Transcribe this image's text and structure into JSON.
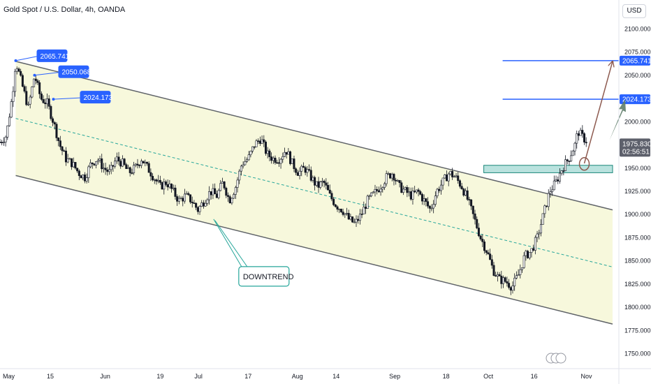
{
  "header": {
    "title": "Gold Spot / U.S. Dollar, 4h, OANDA",
    "currency": "USD"
  },
  "colors": {
    "channel_fill": "#f6f7d8",
    "channel_line": "#5f6368",
    "midline": "#26a69a",
    "candles": "#131722",
    "level_line": "#2962ff",
    "support_zone": "#b2dfdb",
    "arrow_brown": "#8d5a4f",
    "arrow_green": "#5f7d6a",
    "callout_bg": "#2962ff",
    "price_tag_bg": "#5d606b"
  },
  "chart_data": {
    "type": "candlestick",
    "symbol": "XAUUSD",
    "timeframe": "4h",
    "ylim": [
      1740,
      2110
    ],
    "yticks": [
      1750,
      1775,
      1800,
      1825,
      1850,
      1875,
      1900,
      1925,
      1950,
      1975,
      2000,
      2025,
      2050,
      2075,
      2100
    ],
    "ytick_labels": [
      "1750.000",
      "1775.000",
      "1800.000",
      "1825.000",
      "1850.000",
      "1875.000",
      "1900.000",
      "1925.000",
      "1950.000",
      "",
      "2000.000",
      "",
      "2050.000",
      "2075.000",
      "2100.000"
    ],
    "xticks": [
      {
        "label": "May",
        "day": 0
      },
      {
        "label": "15",
        "day": 14
      },
      {
        "label": "Jun",
        "day": 31
      },
      {
        "label": "19",
        "day": 49
      },
      {
        "label": "Jul",
        "day": 61
      },
      {
        "label": "17",
        "day": 77
      },
      {
        "label": "Aug",
        "day": 92
      },
      {
        "label": "14",
        "day": 105
      },
      {
        "label": "Sep",
        "day": 123
      },
      {
        "label": "18",
        "day": 140
      },
      {
        "label": "Oct",
        "day": 153
      },
      {
        "label": "16",
        "day": 168
      },
      {
        "label": "Nov",
        "day": 184
      }
    ],
    "xlim_days": [
      -2,
      195
    ],
    "price_path": [
      [
        -2,
        1978
      ],
      [
        0,
        1985
      ],
      [
        2,
        2030
      ],
      [
        3,
        2065
      ],
      [
        5,
        2040
      ],
      [
        7,
        2015
      ],
      [
        9,
        2050
      ],
      [
        11,
        2025
      ],
      [
        13,
        2020
      ],
      [
        15,
        2000
      ],
      [
        17,
        1975
      ],
      [
        19,
        1960
      ],
      [
        21,
        1955
      ],
      [
        23,
        1945
      ],
      [
        25,
        1940
      ],
      [
        27,
        1955
      ],
      [
        29,
        1960
      ],
      [
        31,
        1950
      ],
      [
        33,
        1945
      ],
      [
        35,
        1960
      ],
      [
        37,
        1955
      ],
      [
        39,
        1945
      ],
      [
        41,
        1950
      ],
      [
        43,
        1960
      ],
      [
        45,
        1950
      ],
      [
        47,
        1940
      ],
      [
        49,
        1930
      ],
      [
        51,
        1935
      ],
      [
        53,
        1925
      ],
      [
        55,
        1915
      ],
      [
        57,
        1920
      ],
      [
        59,
        1915
      ],
      [
        61,
        1905
      ],
      [
        63,
        1915
      ],
      [
        65,
        1925
      ],
      [
        67,
        1920
      ],
      [
        69,
        1935
      ],
      [
        71,
        1915
      ],
      [
        73,
        1930
      ],
      [
        75,
        1955
      ],
      [
        77,
        1960
      ],
      [
        79,
        1975
      ],
      [
        81,
        1982
      ],
      [
        83,
        1965
      ],
      [
        85,
        1960
      ],
      [
        87,
        1960
      ],
      [
        89,
        1970
      ],
      [
        91,
        1955
      ],
      [
        93,
        1945
      ],
      [
        95,
        1950
      ],
      [
        97,
        1940
      ],
      [
        99,
        1930
      ],
      [
        101,
        1935
      ],
      [
        103,
        1920
      ],
      [
        105,
        1910
      ],
      [
        107,
        1905
      ],
      [
        109,
        1895
      ],
      [
        111,
        1890
      ],
      [
        113,
        1900
      ],
      [
        115,
        1915
      ],
      [
        117,
        1922
      ],
      [
        119,
        1930
      ],
      [
        121,
        1940
      ],
      [
        123,
        1945
      ],
      [
        125,
        1930
      ],
      [
        127,
        1925
      ],
      [
        129,
        1920
      ],
      [
        131,
        1925
      ],
      [
        133,
        1915
      ],
      [
        135,
        1905
      ],
      [
        137,
        1925
      ],
      [
        139,
        1935
      ],
      [
        141,
        1945
      ],
      [
        143,
        1940
      ],
      [
        145,
        1930
      ],
      [
        147,
        1915
      ],
      [
        149,
        1895
      ],
      [
        151,
        1875
      ],
      [
        153,
        1860
      ],
      [
        155,
        1840
      ],
      [
        157,
        1830
      ],
      [
        159,
        1828
      ],
      [
        161,
        1822
      ],
      [
        163,
        1835
      ],
      [
        165,
        1855
      ],
      [
        167,
        1860
      ],
      [
        169,
        1875
      ],
      [
        171,
        1900
      ],
      [
        173,
        1925
      ],
      [
        175,
        1935
      ],
      [
        177,
        1950
      ],
      [
        179,
        1960
      ],
      [
        181,
        1975
      ],
      [
        182,
        1990
      ],
      [
        183,
        1985
      ],
      [
        185,
        1978
      ]
    ],
    "channel": {
      "upper": {
        "x1": 3,
        "y1": 2065,
        "x2": 193,
        "y2": 1905
      },
      "lower": {
        "x1": 3,
        "y1": 1942,
        "x2": 193,
        "y2": 1782
      },
      "mid": {
        "x1": 3,
        "y1": 2003.5,
        "x2": 193,
        "y2": 1843.5
      }
    },
    "support_zone": {
      "x1": 152,
      "x2": 193,
      "y1": 1945,
      "y2": 1953
    },
    "levels": [
      {
        "label": "2065.741",
        "value": 2065.741,
        "x1": 158
      },
      {
        "label": "2024.173",
        "value": 2024.173,
        "x1": 158
      }
    ],
    "swing_highs": [
      {
        "label": "2065.741",
        "day": 3,
        "value": 2065.741
      },
      {
        "label": "2050.068",
        "day": 9,
        "value": 2050.068
      },
      {
        "label": "2024.173",
        "day": 15,
        "value": 2024.173
      }
    ],
    "current_price": {
      "label": "1975.830",
      "countdown": "02:56:51",
      "value": 1975.83
    },
    "annotation": {
      "label": "DOWNTREND",
      "day": 66,
      "value": 1895
    },
    "circle_marker": {
      "day": 184,
      "value": 1953
    },
    "arrows": [
      {
        "from_day": 184,
        "from_value": 1955,
        "to_day": 193,
        "to_value": 2065,
        "color": "brown"
      },
      {
        "from_day": 192,
        "from_value": 1980,
        "to_day": 197,
        "to_value": 2024,
        "color": "green"
      }
    ]
  }
}
